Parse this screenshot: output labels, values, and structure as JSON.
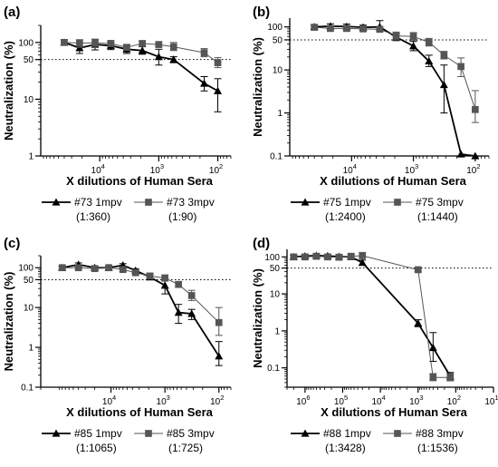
{
  "chart_data": [
    {
      "panel": "(a)",
      "type": "line",
      "xscale": "log-reversed",
      "yscale": "log",
      "xlim": [
        100000,
        60
      ],
      "ylim": [
        1,
        200
      ],
      "xticks": [
        {
          "v": 10000,
          "base": "10",
          "exp": "4"
        },
        {
          "v": 1000,
          "base": "10",
          "exp": "3"
        },
        {
          "v": 100,
          "base": "10",
          "exp": "2"
        }
      ],
      "yticks": [
        {
          "v": 1,
          "label": "1"
        },
        {
          "v": 10,
          "label": "10"
        },
        {
          "v": 50,
          "label": "50"
        },
        {
          "v": 100,
          "label": "100"
        }
      ],
      "ylabel": "Neutralization (%)",
      "xlabel": "X dilutions of  Human Sera",
      "reference_line": 50,
      "series": [
        {
          "name": "#73 1mpv",
          "ic50": "(1:360)",
          "marker": "triangle",
          "color": "#000000",
          "width": 1.8,
          "points": [
            {
              "x": 40000,
              "y": 100,
              "lo": 90,
              "hi": 112
            },
            {
              "x": 22000,
              "y": 80,
              "lo": 64,
              "hi": 98
            },
            {
              "x": 12000,
              "y": 92,
              "lo": 74,
              "hi": 114
            },
            {
              "x": 6500,
              "y": 88,
              "lo": 75,
              "hi": 100
            },
            {
              "x": 3500,
              "y": 76,
              "lo": 64,
              "hi": 90
            },
            {
              "x": 1900,
              "y": 72,
              "lo": 62,
              "hi": 84
            },
            {
              "x": 1000,
              "y": 56,
              "lo": 40,
              "hi": 76
            },
            {
              "x": 560,
              "y": 50,
              "lo": 44,
              "hi": 56
            },
            {
              "x": 170,
              "y": 19,
              "lo": 14,
              "hi": 25
            },
            {
              "x": 100,
              "y": 14,
              "lo": 6,
              "hi": 23
            }
          ]
        },
        {
          "name": "#73 3mpv",
          "ic50": "(1:90)",
          "marker": "square",
          "color": "#555555",
          "width": 1,
          "points": [
            {
              "x": 40000,
              "y": 100,
              "lo": 90,
              "hi": 112
            },
            {
              "x": 22000,
              "y": 98,
              "lo": 82,
              "hi": 112
            },
            {
              "x": 12000,
              "y": 98,
              "lo": 82,
              "hi": 114
            },
            {
              "x": 6500,
              "y": 96,
              "lo": 85,
              "hi": 108
            },
            {
              "x": 3500,
              "y": 82,
              "lo": 74,
              "hi": 92
            },
            {
              "x": 1900,
              "y": 96,
              "lo": 88,
              "hi": 106
            },
            {
              "x": 1000,
              "y": 92,
              "lo": 84,
              "hi": 102
            },
            {
              "x": 560,
              "y": 84,
              "lo": 72,
              "hi": 100
            },
            {
              "x": 170,
              "y": 66,
              "lo": 56,
              "hi": 78
            },
            {
              "x": 100,
              "y": 44,
              "lo": 36,
              "hi": 54
            }
          ]
        }
      ]
    },
    {
      "panel": "(b)",
      "type": "line",
      "xscale": "log-reversed",
      "yscale": "log",
      "xlim": [
        100000,
        60
      ],
      "ylim": [
        0.1,
        160
      ],
      "xticks": [
        {
          "v": 10000,
          "base": "10",
          "exp": "4"
        },
        {
          "v": 1000,
          "base": "10",
          "exp": "3"
        },
        {
          "v": 100,
          "base": "10",
          "exp": "2"
        }
      ],
      "yticks": [
        {
          "v": 0.1,
          "label": "0.1"
        },
        {
          "v": 1,
          "label": "1"
        },
        {
          "v": 10,
          "label": "10"
        },
        {
          "v": 50,
          "label": "50"
        },
        {
          "v": 100,
          "label": "100"
        }
      ],
      "ylabel": "Neutralization (%)",
      "xlabel": "X dilutions of  Human Sera",
      "reference_line": 50,
      "series": [
        {
          "name": "#75 1mpv",
          "ic50": "(1:2400)",
          "marker": "triangle",
          "color": "#000000",
          "width": 1.8,
          "points": [
            {
              "x": 40000,
              "y": 100,
              "lo": 90,
              "hi": 112
            },
            {
              "x": 22000,
              "y": 104,
              "lo": 92,
              "hi": 118
            },
            {
              "x": 12000,
              "y": 102,
              "lo": 90,
              "hi": 116
            },
            {
              "x": 6500,
              "y": 98,
              "lo": 86,
              "hi": 110
            },
            {
              "x": 3500,
              "y": 100,
              "lo": 88,
              "hi": 140
            },
            {
              "x": 1900,
              "y": 58,
              "lo": 48,
              "hi": 70
            },
            {
              "x": 1000,
              "y": 36,
              "lo": 28,
              "hi": 46
            },
            {
              "x": 560,
              "y": 16,
              "lo": 12,
              "hi": 22
            },
            {
              "x": 320,
              "y": 4.5,
              "lo": 1,
              "hi": 13
            },
            {
              "x": 170,
              "y": 0.11
            },
            {
              "x": 100,
              "y": 0.1
            }
          ]
        },
        {
          "name": "#75 3mpv",
          "ic50": "(1:1440)",
          "marker": "square",
          "color": "#555555",
          "width": 1,
          "points": [
            {
              "x": 40000,
              "y": 98,
              "lo": 86,
              "hi": 110
            },
            {
              "x": 22000,
              "y": 92,
              "lo": 80,
              "hi": 104
            },
            {
              "x": 12000,
              "y": 92,
              "lo": 80,
              "hi": 104
            },
            {
              "x": 6500,
              "y": 90,
              "lo": 78,
              "hi": 102
            },
            {
              "x": 3500,
              "y": 88,
              "lo": 78,
              "hi": 100
            },
            {
              "x": 1900,
              "y": 62,
              "lo": 50,
              "hi": 76
            },
            {
              "x": 1000,
              "y": 60,
              "lo": 48,
              "hi": 74
            },
            {
              "x": 560,
              "y": 44,
              "lo": 36,
              "hi": 54
            },
            {
              "x": 320,
              "y": 22,
              "lo": 18,
              "hi": 27
            },
            {
              "x": 170,
              "y": 12,
              "lo": 7,
              "hi": 19
            },
            {
              "x": 100,
              "y": 1.2,
              "lo": 0.6,
              "hi": 3.3
            }
          ]
        }
      ]
    },
    {
      "panel": "(c)",
      "type": "line",
      "xscale": "log-reversed",
      "yscale": "log",
      "xlim": [
        200000,
        60
      ],
      "ylim": [
        0.1,
        200
      ],
      "xticks": [
        {
          "v": 10000,
          "base": "10",
          "exp": "4"
        },
        {
          "v": 1000,
          "base": "10",
          "exp": "3"
        },
        {
          "v": 100,
          "base": "10",
          "exp": "2"
        }
      ],
      "yticks": [
        {
          "v": 0.1,
          "label": "0.1"
        },
        {
          "v": 1,
          "label": "1"
        },
        {
          "v": 10,
          "label": "10"
        },
        {
          "v": 50,
          "label": "50"
        },
        {
          "v": 100,
          "label": "100"
        }
      ],
      "ylabel": "Neutralization (%)",
      "xlabel": "X dilutions of  Human Sera",
      "reference_line": 50,
      "series": [
        {
          "name": "#85 1mpv",
          "ic50": "(1:1065)",
          "marker": "triangle",
          "color": "#000000",
          "width": 1.8,
          "points": [
            {
              "x": 80000,
              "y": 100,
              "lo": 90,
              "hi": 110
            },
            {
              "x": 40000,
              "y": 120,
              "lo": 108,
              "hi": 132
            },
            {
              "x": 20000,
              "y": 100,
              "lo": 90,
              "hi": 110
            },
            {
              "x": 11000,
              "y": 100,
              "lo": 90,
              "hi": 110
            },
            {
              "x": 6000,
              "y": 115,
              "lo": 104,
              "hi": 126
            },
            {
              "x": 3500,
              "y": 85,
              "lo": 76,
              "hi": 94
            },
            {
              "x": 1900,
              "y": 58,
              "lo": 50,
              "hi": 68
            },
            {
              "x": 1000,
              "y": 36,
              "lo": 22,
              "hi": 52
            },
            {
              "x": 560,
              "y": 7.5,
              "lo": 4,
              "hi": 12
            },
            {
              "x": 320,
              "y": 7,
              "lo": 5,
              "hi": 9
            },
            {
              "x": 100,
              "y": 0.6,
              "lo": 0.35,
              "hi": 1.4
            }
          ]
        },
        {
          "name": "#85 3mpv",
          "ic50": "(1:725)",
          "marker": "square",
          "color": "#555555",
          "width": 1,
          "points": [
            {
              "x": 80000,
              "y": 100,
              "lo": 90,
              "hi": 110
            },
            {
              "x": 40000,
              "y": 100,
              "lo": 90,
              "hi": 110
            },
            {
              "x": 20000,
              "y": 95,
              "lo": 85,
              "hi": 106
            },
            {
              "x": 11000,
              "y": 100,
              "lo": 90,
              "hi": 110
            },
            {
              "x": 6000,
              "y": 90,
              "lo": 80,
              "hi": 100
            },
            {
              "x": 3500,
              "y": 75,
              "lo": 66,
              "hi": 84
            },
            {
              "x": 1900,
              "y": 62,
              "lo": 54,
              "hi": 72
            },
            {
              "x": 1000,
              "y": 55,
              "lo": 46,
              "hi": 66
            },
            {
              "x": 560,
              "y": 38,
              "lo": 32,
              "hi": 44
            },
            {
              "x": 320,
              "y": 20,
              "lo": 15,
              "hi": 27
            },
            {
              "x": 100,
              "y": 4.2,
              "lo": 2,
              "hi": 10
            }
          ]
        }
      ]
    },
    {
      "panel": "(d)",
      "type": "line",
      "xscale": "log-reversed",
      "yscale": "log",
      "xlim": [
        3000000,
        10
      ],
      "ylim": [
        0.03,
        160
      ],
      "xticks": [
        {
          "v": 1000000,
          "base": "10",
          "exp": "6"
        },
        {
          "v": 100000,
          "base": "10",
          "exp": "5"
        },
        {
          "v": 10000,
          "base": "10",
          "exp": "4"
        },
        {
          "v": 1000,
          "base": "10",
          "exp": "3"
        },
        {
          "v": 100,
          "base": "10",
          "exp": "2"
        },
        {
          "v": 10,
          "base": "10",
          "exp": "1"
        }
      ],
      "yticks": [
        {
          "v": 0.1,
          "label": "0.1"
        },
        {
          "v": 1,
          "label": "1"
        },
        {
          "v": 10,
          "label": "10"
        },
        {
          "v": 50,
          "label": "50"
        },
        {
          "v": 100,
          "label": "100"
        }
      ],
      "ylabel": "Neutralization (%)",
      "xlabel": "X dilutions of  Human Sera",
      "reference_line": 50,
      "series": [
        {
          "name": "#88 1mpv",
          "ic50": "(1:3428)",
          "marker": "triangle",
          "color": "#000000",
          "width": 1.8,
          "points": [
            {
              "x": 2000000,
              "y": 100,
              "lo": 90,
              "hi": 112
            },
            {
              "x": 1000000,
              "y": 105,
              "lo": 94,
              "hi": 118
            },
            {
              "x": 500000,
              "y": 108,
              "lo": 96,
              "hi": 122
            },
            {
              "x": 250000,
              "y": 106,
              "lo": 94,
              "hi": 120
            },
            {
              "x": 125000,
              "y": 102,
              "lo": 90,
              "hi": 116
            },
            {
              "x": 60000,
              "y": 100,
              "lo": 88,
              "hi": 114
            },
            {
              "x": 30000,
              "y": 70,
              "lo": 60,
              "hi": 82
            },
            {
              "x": 1000,
              "y": 1.6,
              "lo": 1.3,
              "hi": 2.0
            },
            {
              "x": 400,
              "y": 0.35,
              "lo": 0.15,
              "hi": 0.9
            },
            {
              "x": 140,
              "y": 0.06,
              "lo": 0.045,
              "hi": 0.075
            }
          ]
        },
        {
          "name": "#88 3mpv",
          "ic50": "(1:1536)",
          "marker": "square",
          "color": "#555555",
          "width": 1,
          "points": [
            {
              "x": 2000000,
              "y": 100,
              "lo": 90,
              "hi": 112
            },
            {
              "x": 1000000,
              "y": 100,
              "lo": 90,
              "hi": 112
            },
            {
              "x": 500000,
              "y": 104,
              "lo": 92,
              "hi": 118
            },
            {
              "x": 250000,
              "y": 100,
              "lo": 90,
              "hi": 112
            },
            {
              "x": 125000,
              "y": 98,
              "lo": 88,
              "hi": 110
            },
            {
              "x": 60000,
              "y": 104,
              "lo": 92,
              "hi": 120
            },
            {
              "x": 30000,
              "y": 108,
              "lo": 94,
              "hi": 132
            },
            {
              "x": 1000,
              "y": 45,
              "lo": 40,
              "hi": 51
            },
            {
              "x": 400,
              "y": 0.055,
              "lo": 0.045,
              "hi": 0.07
            },
            {
              "x": 140,
              "y": 0.055,
              "lo": 0.045,
              "hi": 0.07
            }
          ]
        }
      ]
    }
  ]
}
